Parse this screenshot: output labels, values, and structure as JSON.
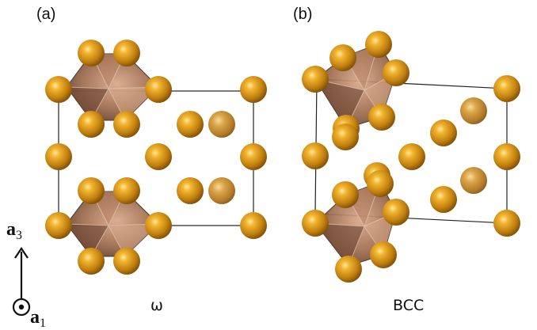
{
  "panels": [
    {
      "label": "(a)",
      "caption": "ω"
    },
    {
      "label": "(b)",
      "caption": "BCC"
    }
  ],
  "axes": {
    "vertical": {
      "symbol": "a",
      "subscript": "3"
    },
    "out_of_plane": {
      "symbol": "a",
      "subscript": "1"
    }
  },
  "colors": {
    "atom": "#c9860f",
    "atom_highlight": "#ffd45e",
    "polyhedron_face": "#9c6a4d",
    "polyhedron_dark": "#4a2f22",
    "cell_edge": "#222222"
  }
}
